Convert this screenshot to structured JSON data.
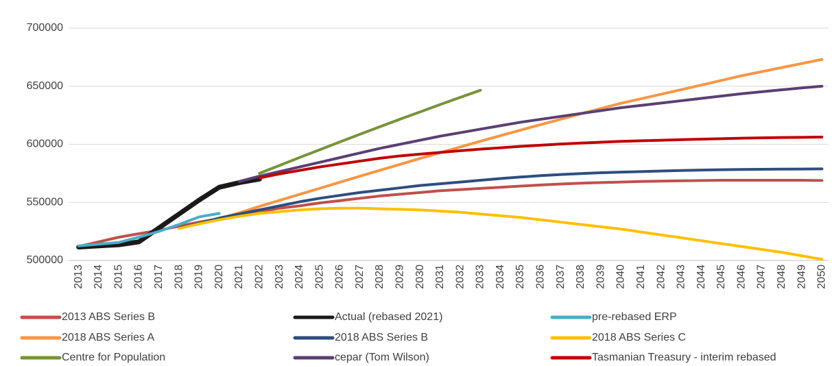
{
  "chart_data": {
    "type": "line",
    "categories": [
      "2013",
      "2014",
      "2015",
      "2016",
      "2017",
      "2018",
      "2019",
      "2020",
      "2021",
      "2022",
      "2023",
      "2024",
      "2025",
      "2026",
      "2027",
      "2028",
      "2029",
      "2030",
      "2031",
      "2032",
      "2033",
      "2034",
      "2035",
      "2036",
      "2037",
      "2038",
      "2039",
      "2040",
      "2041",
      "2042",
      "2043",
      "2044",
      "2045",
      "2046",
      "2047",
      "2048",
      "2049",
      "2050"
    ],
    "ylim": [
      500000,
      700000
    ],
    "yticks": [
      500000,
      550000,
      600000,
      650000,
      700000
    ],
    "grid": true,
    "series": [
      {
        "name": "2013 ABS Series B",
        "color": "#c0504d",
        "width": 4,
        "values": [
          512000,
          516000,
          520000,
          523000,
          526000,
          529500,
          533000,
          536000,
          539000,
          542000,
          545000,
          547000,
          549500,
          551500,
          553500,
          555500,
          557000,
          558500,
          560000,
          561000,
          562000,
          563000,
          564000,
          565000,
          565800,
          566500,
          567000,
          567500,
          568000,
          568300,
          568600,
          568800,
          569000,
          569000,
          569000,
          569000,
          569000,
          568800
        ]
      },
      {
        "name": "Actual (rebased 2021)",
        "color": "#1a1a1a",
        "width": 7,
        "values": [
          511500,
          512500,
          513500,
          516000,
          528000,
          540000,
          552000,
          563000,
          567000,
          570000,
          null,
          null,
          null,
          null,
          null,
          null,
          null,
          null,
          null,
          null,
          null,
          null,
          null,
          null,
          null,
          null,
          null,
          null,
          null,
          null,
          null,
          null,
          null,
          null,
          null,
          null,
          null,
          null
        ]
      },
      {
        "name": "pre-rebased ERP",
        "color": "#4bacc6",
        "width": 4,
        "values": [
          512500,
          514000,
          515500,
          520000,
          525000,
          531000,
          537500,
          540500,
          null,
          null,
          null,
          null,
          null,
          null,
          null,
          null,
          null,
          null,
          null,
          null,
          null,
          null,
          null,
          null,
          null,
          null,
          null,
          null,
          null,
          null,
          null,
          null,
          null,
          null,
          null,
          null,
          null,
          null
        ]
      },
      {
        "name": "2018 ABS Series A",
        "color": "#f79646",
        "width": 4,
        "values": [
          null,
          null,
          null,
          null,
          null,
          528000,
          531500,
          536000,
          541000,
          546500,
          551700,
          556900,
          562100,
          567300,
          572500,
          577600,
          582700,
          587800,
          592800,
          597700,
          602600,
          607400,
          612200,
          616900,
          621600,
          626200,
          630800,
          635300,
          639200,
          643100,
          647000,
          651000,
          655000,
          659000,
          662500,
          666000,
          669500,
          673000
        ]
      },
      {
        "name": "2018 ABS Series B",
        "color": "#2e4e7e",
        "width": 4,
        "values": [
          null,
          null,
          null,
          null,
          null,
          528000,
          532000,
          536500,
          540000,
          543500,
          547000,
          550500,
          553500,
          556000,
          558500,
          560500,
          562500,
          564500,
          566000,
          567500,
          569000,
          570500,
          571800,
          573000,
          574000,
          574800,
          575500,
          576000,
          576500,
          577000,
          577400,
          577800,
          578100,
          578300,
          578500,
          578600,
          578700,
          578800
        ]
      },
      {
        "name": "2018 ABS Series C",
        "color": "#ffc000",
        "width": 4,
        "values": [
          null,
          null,
          null,
          null,
          null,
          527500,
          531500,
          535000,
          538000,
          540500,
          542000,
          543500,
          544500,
          545000,
          545000,
          544500,
          544000,
          543500,
          542500,
          541500,
          540000,
          538500,
          537000,
          535000,
          533000,
          531000,
          529000,
          527000,
          524500,
          522000,
          519500,
          517000,
          514500,
          512000,
          509500,
          507000,
          504000,
          501000
        ]
      },
      {
        "name": "Centre for Population",
        "color": "#77933c",
        "width": 4,
        "values": [
          null,
          null,
          null,
          null,
          null,
          null,
          null,
          null,
          null,
          575000,
          581800,
          588600,
          595300,
          602000,
          608600,
          615100,
          621600,
          627900,
          634200,
          640400,
          646500,
          null,
          null,
          null,
          null,
          null,
          null,
          null,
          null,
          null,
          null,
          null,
          null,
          null,
          null,
          null,
          null,
          null
        ]
      },
      {
        "name": "cepar (Tom Wilson)",
        "color": "#5b3f73",
        "width": 4,
        "values": [
          null,
          null,
          null,
          null,
          null,
          null,
          null,
          null,
          568000,
          572500,
          576500,
          580500,
          584500,
          588500,
          592500,
          596500,
          600000,
          603500,
          607000,
          610000,
          613000,
          616000,
          619000,
          621500,
          624000,
          626500,
          629000,
          631500,
          633500,
          635500,
          637500,
          639500,
          641500,
          643500,
          645200,
          646900,
          648500,
          650000
        ]
      },
      {
        "name": "Tasmanian Treasury - interim rebased",
        "color": "#c00000",
        "width": 4,
        "values": [
          null,
          null,
          null,
          null,
          null,
          null,
          null,
          null,
          null,
          571000,
          574500,
          577500,
          580500,
          583000,
          585500,
          588000,
          590000,
          591500,
          593000,
          594500,
          595800,
          597000,
          598200,
          599200,
          600200,
          601000,
          601800,
          602500,
          603000,
          603500,
          604000,
          604400,
          604800,
          605200,
          605500,
          605800,
          606000,
          606200
        ]
      }
    ]
  }
}
